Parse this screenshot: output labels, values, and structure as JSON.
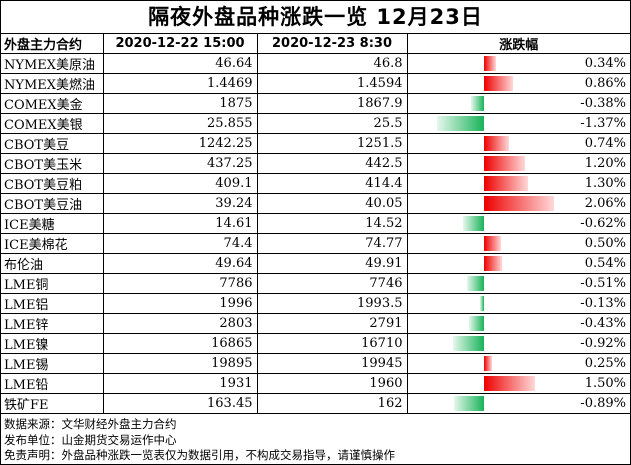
{
  "title": "隔夜外盘品种涨跌一览 12月23日",
  "headers": [
    "外盘主力合约",
    "2020-12-22 15:00",
    "2020-12-23 8:30",
    "涨跌幅"
  ],
  "colors": {
    "up": "#ee0000",
    "down": "#19b35a"
  },
  "max_abs_change": 2.06,
  "rows": [
    {
      "name": "NYMEX美原油",
      "prev": "46.64",
      "curr": "46.8",
      "pct": "0.34%",
      "change": 0.34
    },
    {
      "name": "NYMEX美燃油",
      "prev": "1.4469",
      "curr": "1.4594",
      "pct": "0.86%",
      "change": 0.86
    },
    {
      "name": "COMEX美金",
      "prev": "1875",
      "curr": "1867.9",
      "pct": "-0.38%",
      "change": -0.38
    },
    {
      "name": "COMEX美银",
      "prev": "25.855",
      "curr": "25.5",
      "pct": "-1.37%",
      "change": -1.37
    },
    {
      "name": "CBOT美豆",
      "prev": "1242.25",
      "curr": "1251.5",
      "pct": "0.74%",
      "change": 0.74
    },
    {
      "name": "CBOT美玉米",
      "prev": "437.25",
      "curr": "442.5",
      "pct": "1.20%",
      "change": 1.2
    },
    {
      "name": "CBOT美豆粕",
      "prev": "409.1",
      "curr": "414.4",
      "pct": "1.30%",
      "change": 1.3
    },
    {
      "name": "CBOT美豆油",
      "prev": "39.24",
      "curr": "40.05",
      "pct": "2.06%",
      "change": 2.06
    },
    {
      "name": "ICE美糖",
      "prev": "14.61",
      "curr": "14.52",
      "pct": "-0.62%",
      "change": -0.62
    },
    {
      "name": "ICE美棉花",
      "prev": "74.4",
      "curr": "74.77",
      "pct": "0.50%",
      "change": 0.5
    },
    {
      "name": "布伦油",
      "prev": "49.64",
      "curr": "49.91",
      "pct": "0.54%",
      "change": 0.54
    },
    {
      "name": "LME铜",
      "prev": "7786",
      "curr": "7746",
      "pct": "-0.51%",
      "change": -0.51
    },
    {
      "name": "LME铝",
      "prev": "1996",
      "curr": "1993.5",
      "pct": "-0.13%",
      "change": -0.13
    },
    {
      "name": "LME锌",
      "prev": "2803",
      "curr": "2791",
      "pct": "-0.43%",
      "change": -0.43
    },
    {
      "name": "LME镍",
      "prev": "16865",
      "curr": "16710",
      "pct": "-0.92%",
      "change": -0.92
    },
    {
      "name": "LME锡",
      "prev": "19895",
      "curr": "19945",
      "pct": "0.25%",
      "change": 0.25
    },
    {
      "name": "LME铅",
      "prev": "1931",
      "curr": "1960",
      "pct": "1.50%",
      "change": 1.5
    },
    {
      "name": "铁矿FE",
      "prev": "163.45",
      "curr": "162",
      "pct": "-0.89%",
      "change": -0.89
    }
  ],
  "notes": [
    "数据来源：文华财经外盘主力合约",
    "发布单位：山金期货交易运作中心",
    "免责声明：外盘品种涨跌一览表仅为数据引用，不构成交易指导，请谨慎操作"
  ]
}
